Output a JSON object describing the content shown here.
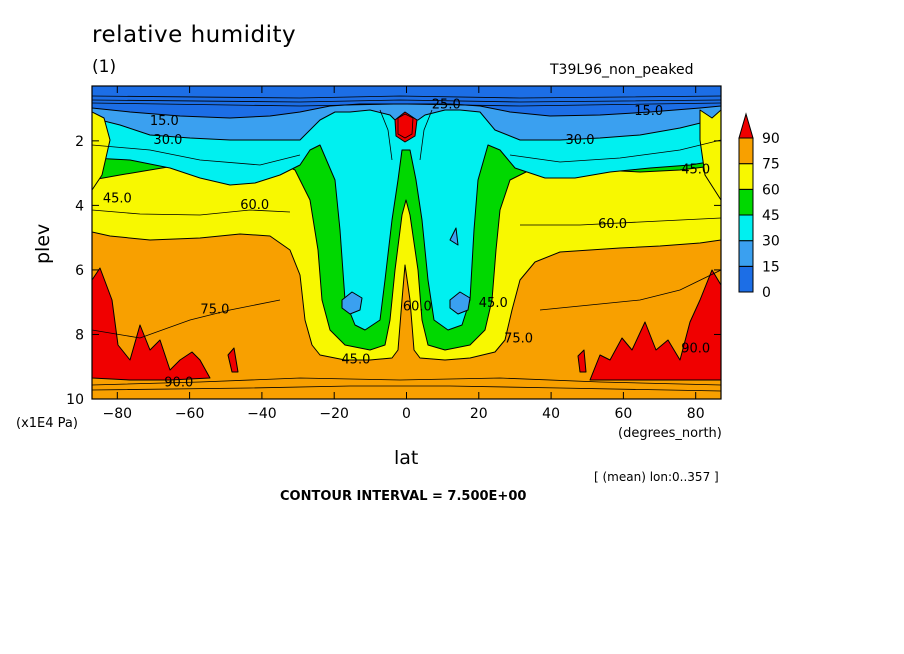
{
  "chart_data": {
    "type": "contour",
    "title": "relative humidity",
    "subtitle": "(1)",
    "run_name": "T39L96_non_peaked",
    "xlabel": "lat",
    "xunit": "(degrees_north)",
    "ylabel": "plev",
    "yunit": "(x1E4 Pa)",
    "mean_note": "[ (mean) lon:0..357 ]",
    "contour_interval": "CONTOUR INTERVAL = 7.500E+00",
    "xlim": [
      -87,
      87
    ],
    "ylim": [
      10,
      0.3
    ],
    "x_ticks": [
      -80,
      -60,
      -40,
      -20,
      0,
      20,
      40,
      60,
      80
    ],
    "y_ticks": [
      2,
      4,
      6,
      8,
      10
    ],
    "colorbar": {
      "levels": [
        0,
        15,
        30,
        45,
        60,
        75,
        90
      ],
      "colors": [
        "#1c6ee6",
        "#3aa0f0",
        "#00f0f0",
        "#00d800",
        "#f8f800",
        "#f8a000",
        "#f00000"
      ]
    },
    "contour_labels": [
      {
        "text": "15.0",
        "x": -67,
        "y": 1.35
      },
      {
        "text": "30.0",
        "x": -66,
        "y": 1.95
      },
      {
        "text": "45.0",
        "x": -80,
        "y": 3.75
      },
      {
        "text": "60.0",
        "x": -42,
        "y": 3.95
      },
      {
        "text": "75.0",
        "x": -53,
        "y": 7.2
      },
      {
        "text": "90.0",
        "x": -63,
        "y": 9.45
      },
      {
        "text": "45.0",
        "x": -14,
        "y": 8.75
      },
      {
        "text": "25.0",
        "x": 11,
        "y": 0.85
      },
      {
        "text": "60.0",
        "x": 3,
        "y": 7.1
      },
      {
        "text": "45.0",
        "x": 24,
        "y": 7.0
      },
      {
        "text": "75.0",
        "x": 31,
        "y": 8.1
      },
      {
        "text": "30.0",
        "x": 48,
        "y": 1.95
      },
      {
        "text": "60.0",
        "x": 57,
        "y": 4.55
      },
      {
        "text": "15.0",
        "x": 67,
        "y": 1.05
      },
      {
        "text": "45.0",
        "x": 80,
        "y": 2.85
      },
      {
        "text": "90.0",
        "x": 80,
        "y": 8.4
      }
    ]
  }
}
